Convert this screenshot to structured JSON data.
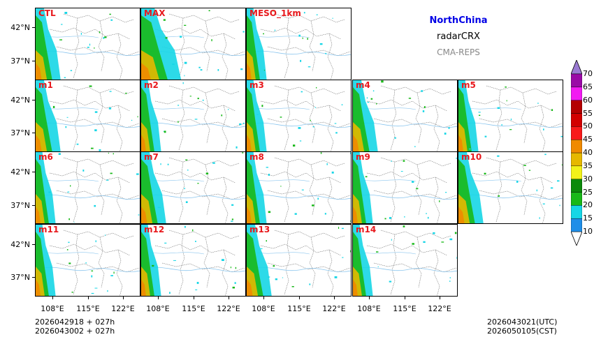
{
  "title_block": {
    "region": "NorthChina",
    "variable": "radarCRX",
    "system": "CMA-REPS"
  },
  "panels": [
    "CTL",
    "MAX",
    "MESO_1km",
    "m1",
    "m2",
    "m3",
    "m4",
    "m5",
    "m6",
    "m7",
    "m8",
    "m9",
    "m10",
    "m11",
    "m12",
    "m13",
    "m14"
  ],
  "lat_ticks": [
    "42°N",
    "37°N"
  ],
  "lon_ticks": [
    "108°E",
    "115°E",
    "122°E"
  ],
  "colorbar": {
    "levels": [
      "10",
      "15",
      "20",
      "25",
      "30",
      "35",
      "40",
      "45",
      "50",
      "55",
      "60",
      "65",
      "70"
    ],
    "colors": [
      "#1e8ee8",
      "#16d6e6",
      "#18b818",
      "#0a8a0a",
      "#f2f21a",
      "#e6b800",
      "#f08a00",
      "#f81a1a",
      "#d20000",
      "#b40000",
      "#f21af2",
      "#9a0aa6",
      "#9a7ad2"
    ]
  },
  "footer": {
    "init_line1": "2026042918 + 027h",
    "init_line2": "2026043002 + 027h",
    "valid_utc": "2026043021(UTC)",
    "valid_cst": "2026050105(CST)"
  }
}
